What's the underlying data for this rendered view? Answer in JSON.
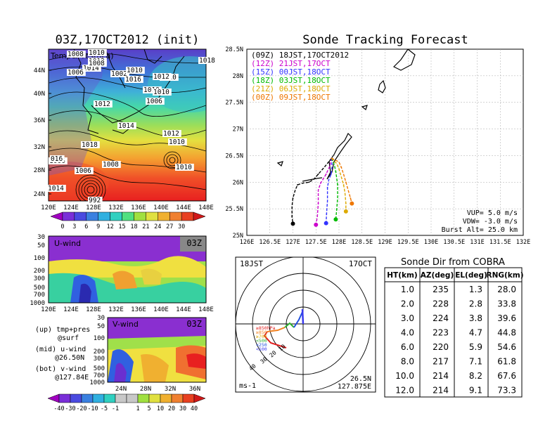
{
  "map_panel": {
    "title": "03Z,17OCT2012 (init)",
    "label": "Temp&Pres(hPa)",
    "lat_ticks": [
      "44N",
      "40N",
      "36N",
      "32N",
      "28N",
      "24N"
    ],
    "lon_ticks": [
      "120E",
      "124E",
      "128E",
      "132E",
      "136E",
      "140E",
      "144E",
      "148E"
    ],
    "isobar_labels": [
      "1008",
      "1010",
      "1012",
      "1014",
      "1006",
      "1002",
      "1010",
      "1016",
      "1010",
      "1018",
      "1008",
      "1006",
      "1012",
      "1010",
      "1010",
      "1006",
      "1012",
      "1014",
      "1012",
      "1010",
      "1018",
      "016",
      "1008",
      "1006",
      "1014",
      "1010",
      "992"
    ],
    "colorbar_ticks": [
      "0",
      "3",
      "6",
      "9",
      "12",
      "15",
      "18",
      "21",
      "24",
      "27",
      "30"
    ]
  },
  "u_panel": {
    "label": "U-wind",
    "time": "03Z",
    "p_ticks": [
      "30",
      "50",
      "100",
      "200",
      "300",
      "500",
      "700",
      "1000"
    ],
    "lon_ticks": [
      "120E",
      "124E",
      "128E",
      "132E",
      "136E",
      "140E",
      "144E",
      "148E"
    ]
  },
  "v_panel": {
    "label": "V-wind",
    "time": "03Z",
    "p_ticks": [
      "30",
      "50",
      "100",
      "200",
      "300",
      "500",
      "700",
      "1000"
    ],
    "lat_ticks": [
      "24N",
      "28N",
      "32N",
      "36N"
    ]
  },
  "legend_notes": {
    "up1": "(up) tmp+pres",
    "up2": "@surf",
    "mid1": "(mid) u-wind",
    "mid2": "@26.50N",
    "bot1": "(bot) v-wind",
    "bot2": "@127.84E"
  },
  "wind_colorbar_ticks": [
    "-40",
    "-30",
    "-20",
    "-10",
    "-5",
    "-1",
    "1",
    "5",
    "10",
    "20",
    "30",
    "40"
  ],
  "chart_data": {
    "type": "line",
    "title": "Sonde Tracking Forecast",
    "xlim": [
      126,
      132
    ],
    "ylim": [
      25,
      28.5
    ],
    "x_ticks": [
      "126E",
      "126.5E",
      "127E",
      "127.5E",
      "128E",
      "128.5E",
      "129E",
      "129.5E",
      "130E",
      "130.5E",
      "131E",
      "131.5E",
      "132E"
    ],
    "y_ticks": [
      "25N",
      "25.5N",
      "26N",
      "26.5N",
      "27N",
      "27.5N",
      "28N",
      "28.5N"
    ],
    "series": [
      {
        "name": "(09Z)  18JST,17OCT2012",
        "color": "#000000",
        "x": [
          127.84,
          127.7,
          127.55,
          127.45,
          127.35,
          127.2,
          127.1,
          127.05,
          127.0,
          126.98,
          126.98,
          127.0
        ],
        "y": [
          26.45,
          26.3,
          26.15,
          26.05,
          26.0,
          25.98,
          25.95,
          25.85,
          25.7,
          25.55,
          25.35,
          25.22
        ]
      },
      {
        "name": "(12Z)  21JST,17OCT",
        "color": "#cc00cc",
        "x": [
          127.84,
          127.8,
          127.72,
          127.65,
          127.6,
          127.55,
          127.55,
          127.53,
          127.5
        ],
        "y": [
          26.45,
          26.3,
          26.15,
          26.05,
          25.98,
          25.85,
          25.6,
          25.35,
          25.2
        ]
      },
      {
        "name": "(15Z)  00JST,18OCT",
        "color": "#3333ff",
        "x": [
          127.84,
          127.85,
          127.83,
          127.78,
          127.75,
          127.75,
          127.73,
          127.72
        ],
        "y": [
          26.45,
          26.3,
          26.15,
          26.05,
          25.9,
          25.65,
          25.4,
          25.23
        ]
      },
      {
        "name": "(18Z)  03JST,18OCT",
        "color": "#00bb00",
        "x": [
          127.84,
          127.9,
          127.93,
          127.95,
          127.97,
          127.97,
          127.95,
          127.93
        ],
        "y": [
          26.45,
          26.32,
          26.2,
          26.08,
          25.95,
          25.7,
          25.48,
          25.3
        ]
      },
      {
        "name": "(21Z)  06JST,18OCT",
        "color": "#ddaa00",
        "x": [
          127.84,
          127.95,
          128.0,
          128.05,
          128.1,
          128.13,
          128.15,
          128.15
        ],
        "y": [
          26.45,
          26.35,
          26.25,
          26.1,
          25.95,
          25.8,
          25.6,
          25.45
        ]
      },
      {
        "name": "(00Z)  09JST,18OCT",
        "color": "#ee7700",
        "x": [
          127.84,
          128.0,
          128.05,
          128.1,
          128.15,
          128.2,
          128.25,
          128.28
        ],
        "y": [
          26.45,
          26.38,
          26.28,
          26.15,
          26.0,
          25.85,
          25.7,
          25.6
        ]
      }
    ],
    "notes": [
      "VUP=  5.0  m/s",
      "VDW= -3.0  m/s",
      "Burst Alt= 25.0  km"
    ]
  },
  "hodograph": {
    "time": "18JST",
    "date": "17OCT",
    "levels": [
      "≥850hPa",
      "≥850",
      "≥700",
      "<500",
      "<250",
      "<100"
    ],
    "ring_labels": [
      "10",
      "20",
      "30",
      "40"
    ],
    "unit": "ms-1",
    "lat": "26.5N",
    "lon": "127.875E"
  },
  "sonde_table": {
    "title": "Sonde Dir from COBRA",
    "headers": [
      "HT(km)",
      "AZ(deg)",
      "EL(deg)",
      "RNG(km)"
    ],
    "rows": [
      [
        "1.0",
        "235",
        "1.3",
        "28.0"
      ],
      [
        "2.0",
        "228",
        "2.8",
        "33.8"
      ],
      [
        "3.0",
        "224",
        "3.8",
        "39.6"
      ],
      [
        "4.0",
        "223",
        "4.7",
        "44.8"
      ],
      [
        "6.0",
        "220",
        "5.9",
        "54.6"
      ],
      [
        "8.0",
        "217",
        "7.1",
        "61.8"
      ],
      [
        "10.0",
        "214",
        "8.2",
        "67.6"
      ],
      [
        "12.0",
        "214",
        "9.1",
        "73.3"
      ]
    ]
  }
}
